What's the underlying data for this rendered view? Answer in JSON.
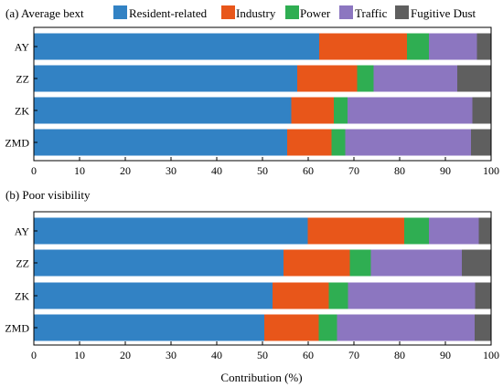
{
  "legend": [
    {
      "name": "Resident-related",
      "color": "#3282c4"
    },
    {
      "name": "Industry",
      "color": "#e8561a"
    },
    {
      "name": "Power",
      "color": "#2fae52"
    },
    {
      "name": "Traffic",
      "color": "#8c76c0"
    },
    {
      "name": "Fugitive Dust",
      "color": "#5f5f5f"
    }
  ],
  "chart_data": [
    {
      "type": "bar",
      "orientation": "horizontal",
      "stacked": true,
      "title": "(a) Average bext",
      "categories": [
        "AY",
        "ZZ",
        "ZK",
        "ZMD"
      ],
      "xlabel": "",
      "xlim": [
        0,
        100
      ],
      "xticks": [
        "0",
        "10",
        "20",
        "30",
        "40",
        "50",
        "60",
        "70",
        "80",
        "90",
        "100"
      ],
      "legend_position": "top",
      "series": [
        {
          "name": "Resident-related",
          "values": [
            62.4,
            57.6,
            56.3,
            55.4
          ]
        },
        {
          "name": "Industry",
          "values": [
            19.2,
            13.1,
            9.3,
            9.7
          ]
        },
        {
          "name": "Power",
          "values": [
            4.8,
            3.6,
            3.0,
            3.0
          ]
        },
        {
          "name": "Traffic",
          "values": [
            10.5,
            18.3,
            27.3,
            27.5
          ]
        },
        {
          "name": "Fugitive Dust",
          "values": [
            3.1,
            7.4,
            4.1,
            4.4
          ]
        }
      ]
    },
    {
      "type": "bar",
      "orientation": "horizontal",
      "stacked": true,
      "title": "(b) Poor visibility",
      "categories": [
        "AY",
        "ZZ",
        "ZK",
        "ZMD"
      ],
      "xlabel": "Contribution (%)",
      "xlim": [
        0,
        100
      ],
      "xticks": [
        "0",
        "10",
        "20",
        "30",
        "40",
        "50",
        "60",
        "70",
        "80",
        "90",
        "100"
      ],
      "series": [
        {
          "name": "Resident-related",
          "values": [
            59.9,
            54.6,
            52.2,
            50.4
          ]
        },
        {
          "name": "Industry",
          "values": [
            21.1,
            14.5,
            12.3,
            11.9
          ]
        },
        {
          "name": "Power",
          "values": [
            5.4,
            4.6,
            4.2,
            4.0
          ]
        },
        {
          "name": "Traffic",
          "values": [
            10.9,
            19.9,
            27.8,
            30.1
          ]
        },
        {
          "name": "Fugitive Dust",
          "values": [
            2.7,
            6.4,
            3.5,
            3.6
          ]
        }
      ]
    }
  ]
}
